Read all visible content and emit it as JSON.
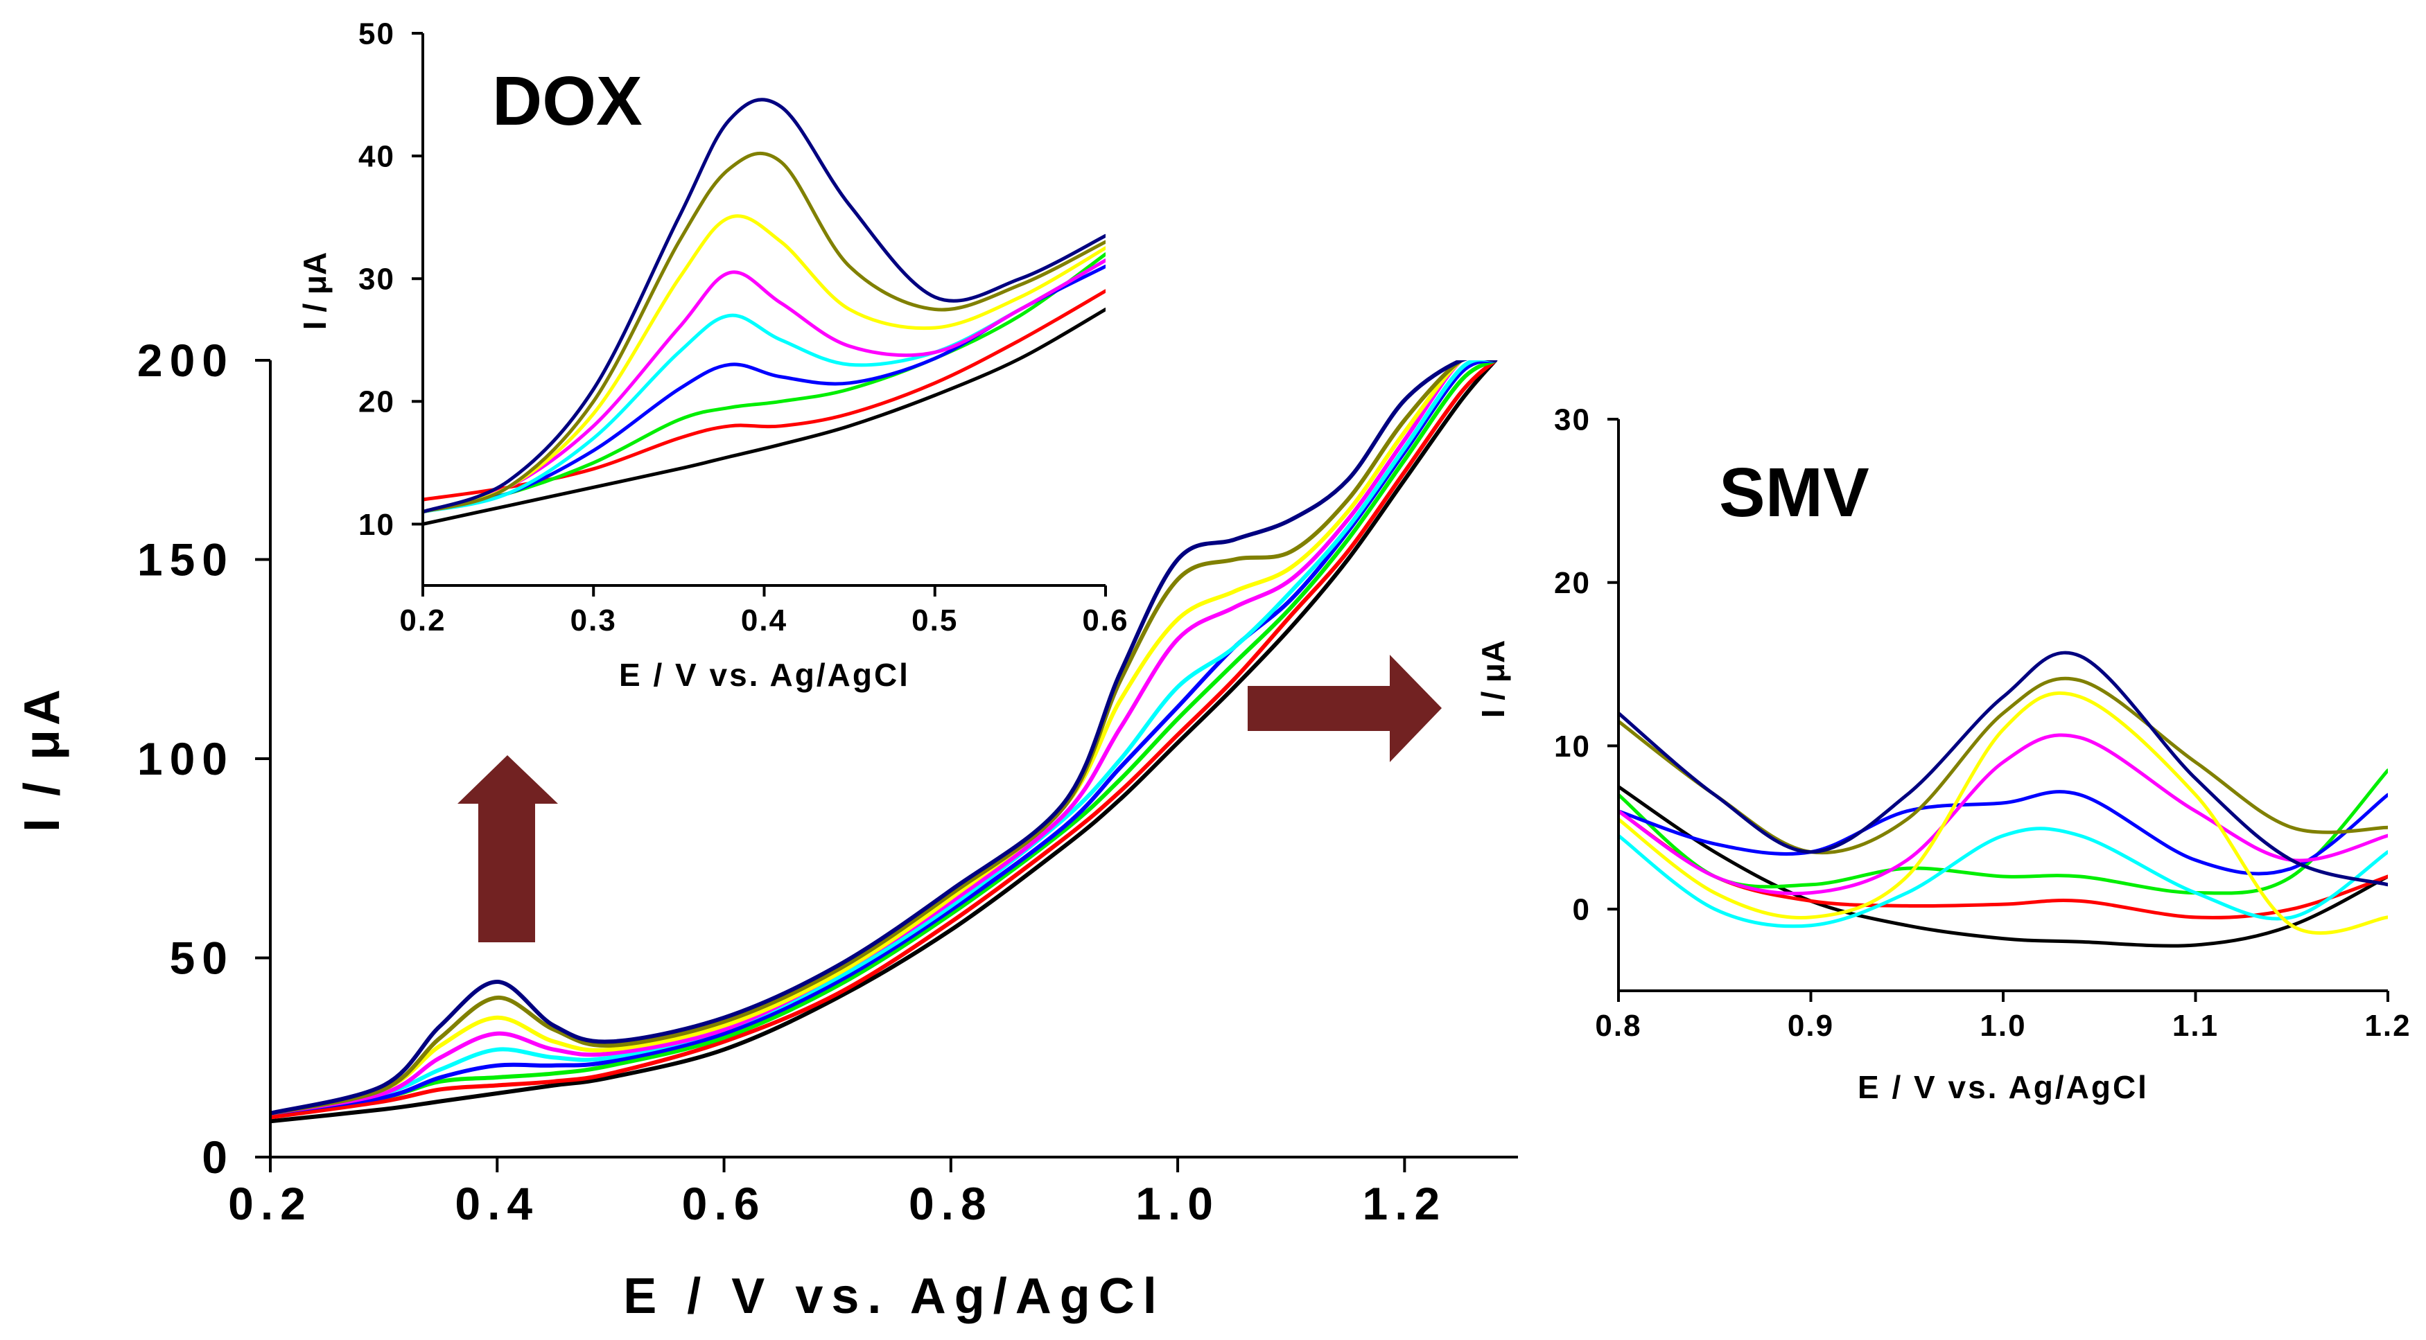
{
  "figure": {
    "series_colors": [
      "#000000",
      "#ff0000",
      "#00ee00",
      "#0000ff",
      "#00ffff",
      "#ff00ff",
      "#ffff00",
      "#808000",
      "#000080"
    ],
    "arrow_color": "#722222"
  },
  "chart_data": [
    {
      "id": "main",
      "type": "line",
      "title": "",
      "xlabel": "E  / V vs. Ag/AgCl",
      "ylabel": "I / μA",
      "xlim": [
        0.2,
        1.3
      ],
      "ylim": [
        0,
        200
      ],
      "xticks": [
        "0.2",
        "0.4",
        "0.6",
        "0.8",
        "1.0",
        "1.2"
      ],
      "xtick_values": [
        0.2,
        0.4,
        0.6,
        0.8,
        1.0,
        1.2
      ],
      "yticks": [
        "0",
        "50",
        "100",
        "150",
        "200"
      ],
      "ytick_values": [
        0,
        50,
        100,
        150,
        200
      ],
      "x": [
        0.2,
        0.3,
        0.35,
        0.4,
        0.45,
        0.5,
        0.6,
        0.7,
        0.8,
        0.9,
        0.95,
        1.0,
        1.05,
        1.1,
        1.15,
        1.2,
        1.25,
        1.28
      ],
      "series": [
        {
          "name": "black",
          "color": "#000000",
          "values": [
            9,
            12,
            14,
            16,
            18,
            20,
            27,
            40,
            57,
            78,
            90,
            104,
            118,
            133,
            150,
            170,
            190,
            200
          ]
        },
        {
          "name": "red",
          "color": "#ff0000",
          "values": [
            10,
            14,
            17,
            18,
            19,
            21,
            29,
            41,
            59,
            80,
            92,
            106,
            120,
            136,
            152,
            172,
            192,
            200
          ]
        },
        {
          "name": "green",
          "color": "#00ee00",
          "values": [
            11,
            15,
            19,
            20,
            21,
            23,
            30,
            43,
            61,
            82,
            95,
            110,
            124,
            138,
            155,
            175,
            195,
            200
          ]
        },
        {
          "name": "blue",
          "color": "#0000ff",
          "values": [
            11,
            15,
            20,
            23,
            23,
            24,
            31,
            44,
            62,
            83,
            98,
            113,
            128,
            140,
            157,
            177,
            197,
            200
          ]
        },
        {
          "name": "cyan",
          "color": "#00ffff",
          "values": [
            11,
            16,
            22,
            27,
            25,
            25,
            32,
            45,
            63,
            85,
            100,
            118,
            128,
            142,
            158,
            178,
            198,
            200
          ]
        },
        {
          "name": "magenta",
          "color": "#ff00ff",
          "values": [
            11,
            16,
            25,
            31,
            27,
            26,
            32,
            46,
            64,
            86,
            108,
            130,
            138,
            145,
            160,
            180,
            200,
            200
          ]
        },
        {
          "name": "yellow",
          "color": "#ffff00",
          "values": [
            11,
            17,
            28,
            35,
            29,
            27,
            33,
            46,
            65,
            88,
            115,
            135,
            142,
            148,
            162,
            182,
            200,
            200
          ]
        },
        {
          "name": "olive",
          "color": "#808000",
          "values": [
            11,
            17,
            30,
            40,
            32,
            28,
            34,
            47,
            66,
            88,
            120,
            145,
            150,
            152,
            165,
            185,
            200,
            200
          ]
        },
        {
          "name": "navy",
          "color": "#000080",
          "values": [
            11,
            18,
            33,
            44,
            33,
            29,
            35,
            48,
            67,
            89,
            122,
            150,
            155,
            160,
            170,
            190,
            200,
            200
          ]
        }
      ]
    },
    {
      "id": "inset-dox",
      "type": "line",
      "title": "DOX",
      "xlabel": "E / V vs. Ag/AgCl",
      "ylabel": "I / μA",
      "xlim": [
        0.2,
        0.6
      ],
      "ylim": [
        5,
        50
      ],
      "xticks": [
        "0.2",
        "0.3",
        "0.4",
        "0.5",
        "0.6"
      ],
      "xtick_values": [
        0.2,
        0.3,
        0.4,
        0.5,
        0.6
      ],
      "yticks": [
        "10",
        "20",
        "30",
        "40",
        "50"
      ],
      "ytick_values": [
        10,
        20,
        30,
        40,
        50
      ],
      "x": [
        0.2,
        0.25,
        0.3,
        0.35,
        0.38,
        0.41,
        0.45,
        0.5,
        0.55,
        0.6
      ],
      "series": [
        {
          "name": "black",
          "color": "#000000",
          "values": [
            10,
            11.5,
            13,
            14.5,
            15.5,
            16.5,
            18,
            20.5,
            23.5,
            27.5
          ]
        },
        {
          "name": "red",
          "color": "#ff0000",
          "values": [
            12,
            13,
            14.5,
            17,
            18,
            18,
            19,
            21.5,
            25,
            29
          ]
        },
        {
          "name": "green",
          "color": "#00ee00",
          "values": [
            11,
            12.5,
            15,
            18.5,
            19.5,
            20,
            21,
            23.5,
            27,
            32
          ]
        },
        {
          "name": "blue",
          "color": "#0000ff",
          "values": [
            11,
            12.5,
            16,
            21,
            23,
            22,
            21.5,
            23.5,
            27.5,
            31
          ]
        },
        {
          "name": "cyan",
          "color": "#00ffff",
          "values": [
            11,
            12.5,
            17,
            24,
            27,
            25,
            23,
            24,
            27.5,
            31.5
          ]
        },
        {
          "name": "magenta",
          "color": "#ff00ff",
          "values": [
            11,
            13,
            18,
            26,
            30.5,
            28,
            24.5,
            24,
            27.5,
            31.5
          ]
        },
        {
          "name": "yellow",
          "color": "#ffff00",
          "values": [
            11,
            13,
            19,
            30,
            35,
            33,
            27.5,
            26,
            28.5,
            32.5
          ]
        },
        {
          "name": "olive",
          "color": "#808000",
          "values": [
            11,
            13,
            20,
            33,
            39,
            39.5,
            31,
            27.5,
            29.5,
            33
          ]
        },
        {
          "name": "navy",
          "color": "#000080",
          "values": [
            11,
            13.5,
            21,
            35,
            43,
            44,
            36,
            28.5,
            30,
            33.5
          ]
        }
      ]
    },
    {
      "id": "inset-smv",
      "type": "line",
      "title": "SMV",
      "xlabel": "E / V vs. Ag/AgCl",
      "ylabel": "I / μA",
      "xlim": [
        0.8,
        1.2
      ],
      "ylim": [
        -5,
        30
      ],
      "xticks": [
        "0.8",
        "0.9",
        "1.0",
        "1.1",
        "1.2"
      ],
      "xtick_values": [
        0.8,
        0.9,
        1.0,
        1.1,
        1.2
      ],
      "yticks": [
        "0",
        "10",
        "20",
        "30"
      ],
      "ytick_values": [
        0,
        10,
        20,
        30
      ],
      "x": [
        0.8,
        0.85,
        0.9,
        0.95,
        1.0,
        1.04,
        1.1,
        1.15,
        1.2
      ],
      "series": [
        {
          "name": "black",
          "color": "#000000",
          "values": [
            7.5,
            3.5,
            0.5,
            -1,
            -1.8,
            -2,
            -2.2,
            -1,
            2
          ]
        },
        {
          "name": "red",
          "color": "#ff0000",
          "values": [
            6,
            2,
            0.5,
            0.2,
            0.3,
            0.5,
            -0.5,
            0,
            2
          ]
        },
        {
          "name": "green",
          "color": "#00ee00",
          "values": [
            7,
            2,
            1.5,
            2.5,
            2,
            2,
            1,
            2,
            8.5
          ]
        },
        {
          "name": "blue",
          "color": "#0000ff",
          "values": [
            6,
            4,
            3.5,
            6,
            6.5,
            7,
            3,
            2.5,
            7
          ]
        },
        {
          "name": "cyan",
          "color": "#00ffff",
          "values": [
            4.5,
            0,
            -1,
            1,
            4.5,
            4.5,
            1,
            -0.5,
            3.5
          ]
        },
        {
          "name": "magenta",
          "color": "#ff00ff",
          "values": [
            6,
            2,
            1,
            3,
            9,
            10.5,
            6,
            3,
            4.5
          ]
        },
        {
          "name": "yellow",
          "color": "#ffff00",
          "values": [
            5.5,
            1,
            -0.5,
            2,
            11,
            13,
            7,
            -1,
            -0.5
          ]
        },
        {
          "name": "olive",
          "color": "#808000",
          "values": [
            11.5,
            7,
            3.5,
            5.5,
            12,
            14,
            9,
            5,
            5
          ]
        },
        {
          "name": "navy",
          "color": "#000080",
          "values": [
            12,
            7,
            3.5,
            7,
            13,
            15.5,
            8,
            3,
            1.5
          ]
        }
      ]
    }
  ]
}
